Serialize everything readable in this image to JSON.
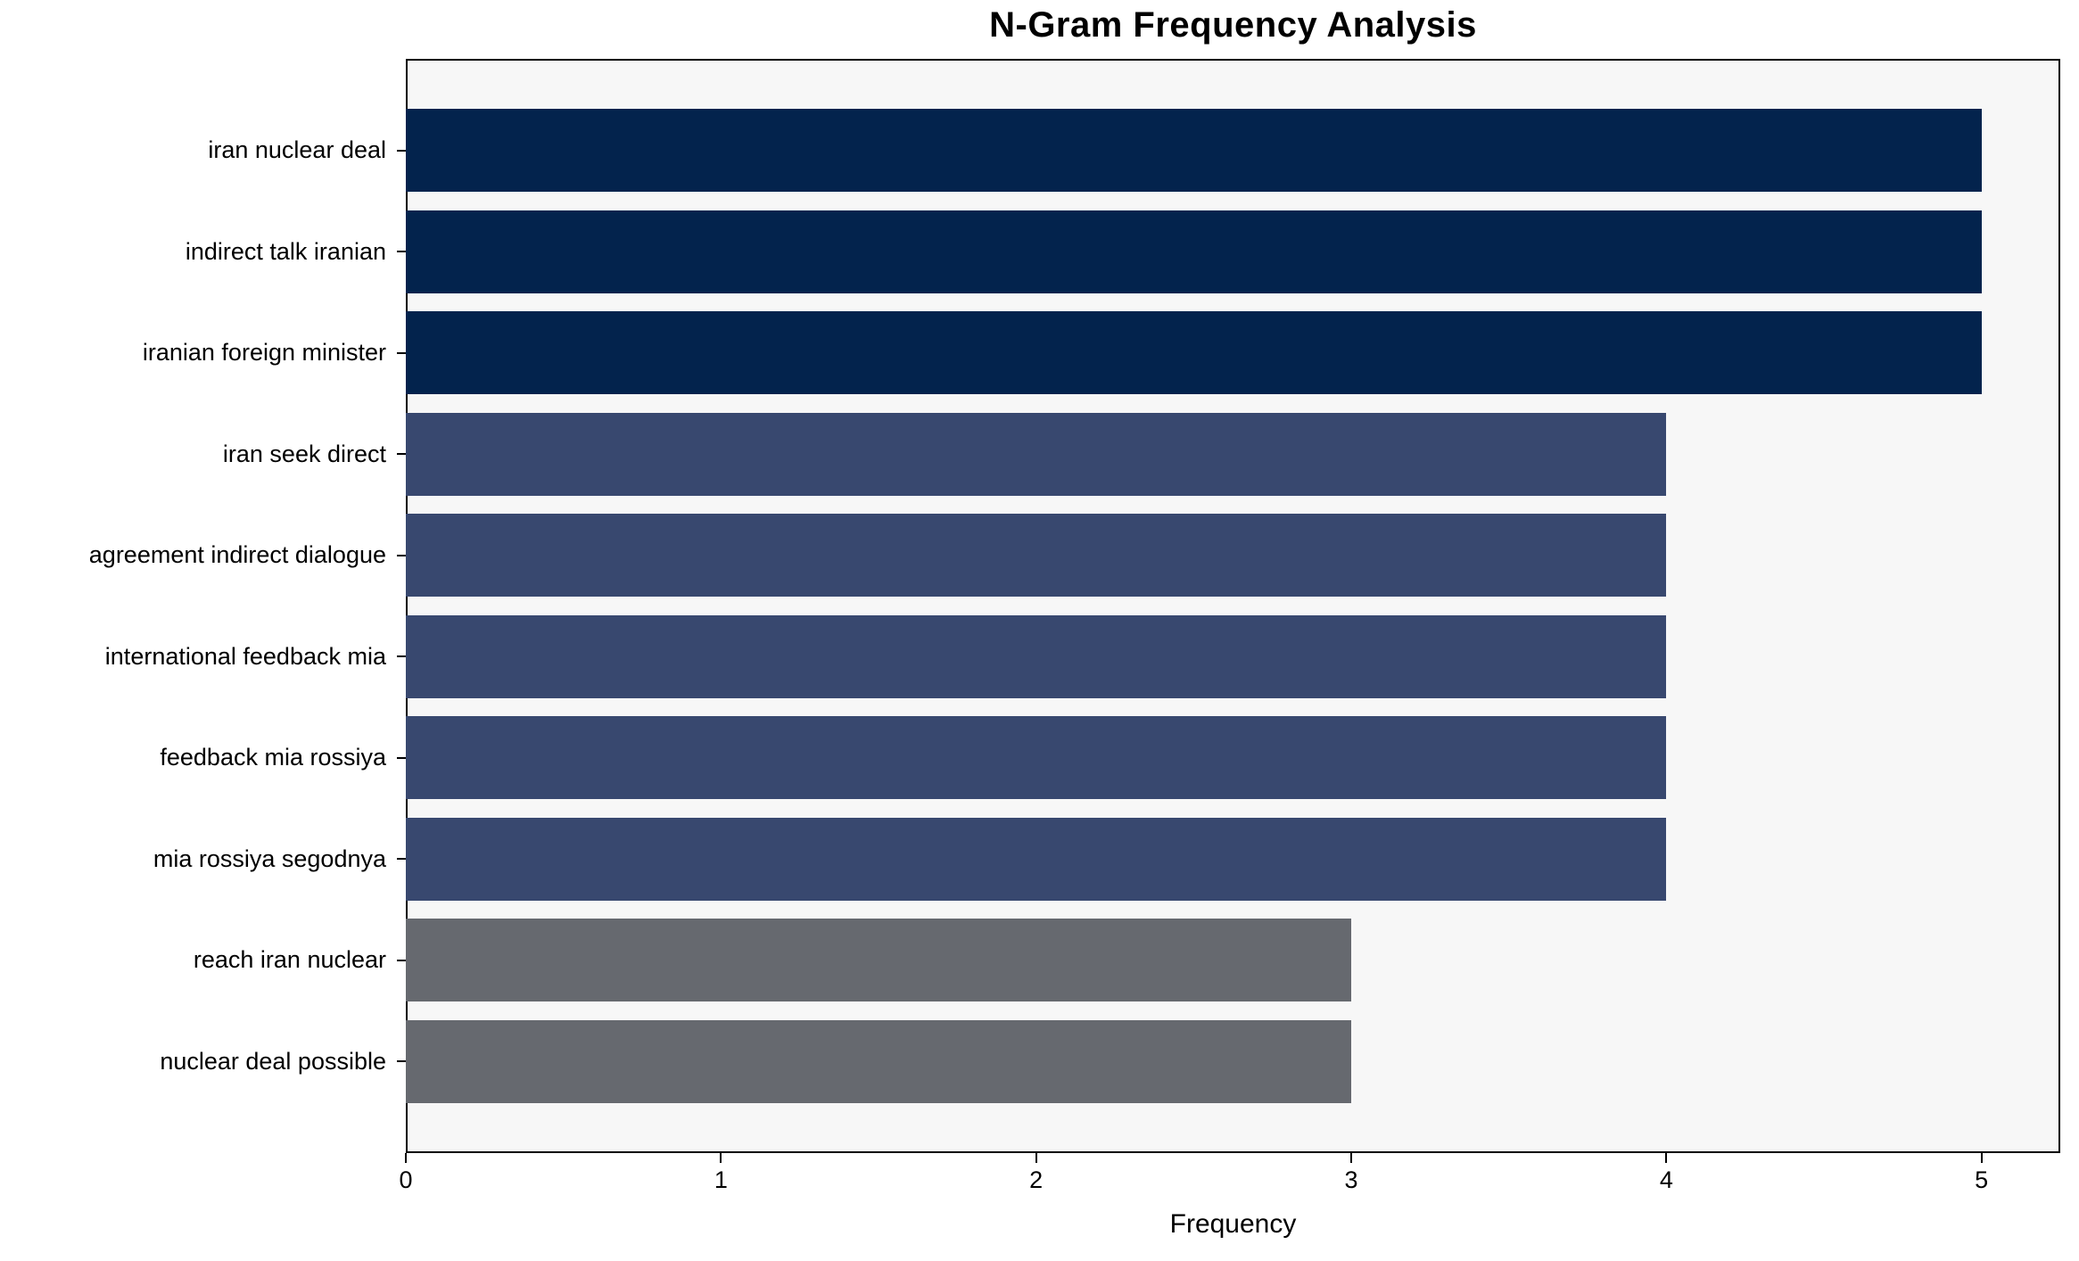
{
  "chart_data": {
    "type": "bar",
    "orientation": "horizontal",
    "title": "N-Gram Frequency Analysis",
    "xlabel": "Frequency",
    "ylabel": "",
    "categories": [
      "iran nuclear deal",
      "indirect talk iranian",
      "iranian foreign minister",
      "iran seek direct",
      "agreement indirect dialogue",
      "international feedback mia",
      "feedback mia rossiya",
      "mia rossiya segodnya",
      "reach iran nuclear",
      "nuclear deal possible"
    ],
    "values": [
      5,
      5,
      5,
      4,
      4,
      4,
      4,
      4,
      3,
      3
    ],
    "bar_colors": [
      "#03234d",
      "#03234d",
      "#03234d",
      "#38486f",
      "#38486f",
      "#38486f",
      "#38486f",
      "#38486f",
      "#66696f",
      "#66696f"
    ],
    "xlim": [
      0,
      5.25
    ],
    "xticks": [
      0,
      1,
      2,
      3,
      4,
      5
    ],
    "grid": false,
    "legend": null,
    "plot_background": "#f7f7f7",
    "figure_background": "#ffffff",
    "axis_color": "#000000"
  }
}
